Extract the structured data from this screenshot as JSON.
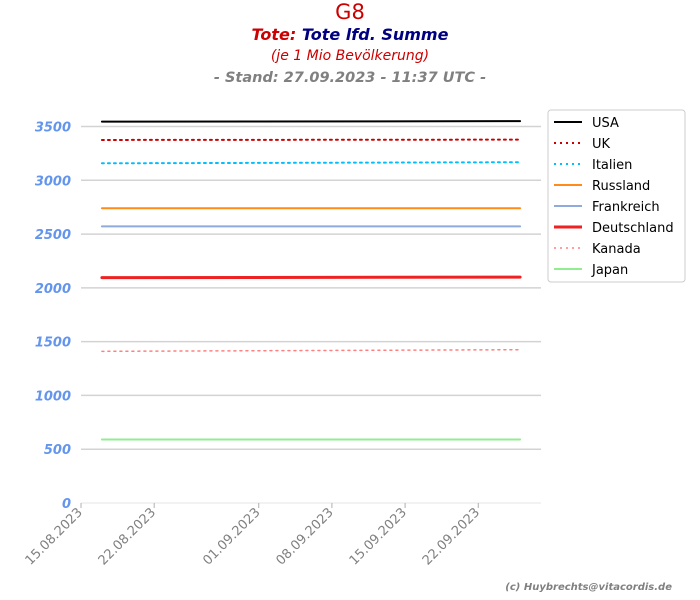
{
  "chart_data": {
    "type": "line",
    "title": "G8",
    "subtitle_prefix": "Tote:",
    "subtitle_main": "Tote lfd. Summe",
    "subtitle_note": "(je 1 Mio Bevölkerung)",
    "stand": "- Stand: 27.09.2023 - 11:37 UTC -",
    "credit": "(c) Huybrechts@vitacordis.de",
    "x_start": "2023-08-15",
    "x_end": "2023-09-28",
    "xticks": [
      "15.08.2023",
      "22.08.2023",
      "01.09.2023",
      "08.09.2023",
      "15.09.2023",
      "22.09.2023"
    ],
    "ylim": [
      0,
      3700
    ],
    "yticks": [
      0,
      500,
      1000,
      1500,
      2000,
      2500,
      3000,
      3500
    ],
    "grid": true,
    "legend_position": "top-right",
    "series": [
      {
        "name": "USA",
        "color": "#000000",
        "style": "solid",
        "width": 2,
        "start": "2023-08-17",
        "end": "2023-09-26",
        "y_start": 3545,
        "y_end": 3550
      },
      {
        "name": "UK",
        "color": "#cc0000",
        "style": "dotted",
        "width": 2,
        "start": "2023-08-17",
        "end": "2023-09-26",
        "y_start": 3375,
        "y_end": 3378
      },
      {
        "name": "Italien",
        "color": "#00bfff",
        "style": "dotted",
        "width": 2,
        "start": "2023-08-17",
        "end": "2023-09-26",
        "y_start": 3158,
        "y_end": 3168
      },
      {
        "name": "Russland",
        "color": "#ff8c1a",
        "style": "solid",
        "width": 2,
        "start": "2023-08-17",
        "end": "2023-09-26",
        "y_start": 2740,
        "y_end": 2740
      },
      {
        "name": "Frankreich",
        "color": "#8faadc",
        "style": "solid",
        "width": 2,
        "start": "2023-08-17",
        "end": "2023-09-26",
        "y_start": 2572,
        "y_end": 2572
      },
      {
        "name": "Deutschland",
        "color": "#ee2222",
        "style": "solid",
        "width": 3,
        "start": "2023-08-17",
        "end": "2023-09-26",
        "y_start": 2095,
        "y_end": 2100
      },
      {
        "name": "Kanada",
        "color": "#ff8080",
        "style": "dotted",
        "width": 1.5,
        "start": "2023-08-17",
        "end": "2023-09-26",
        "y_start": 1410,
        "y_end": 1425
      },
      {
        "name": "Japan",
        "color": "#90ee90",
        "style": "solid",
        "width": 2,
        "start": "2023-08-17",
        "end": "2023-09-26",
        "y_start": 590,
        "y_end": 590
      }
    ]
  }
}
